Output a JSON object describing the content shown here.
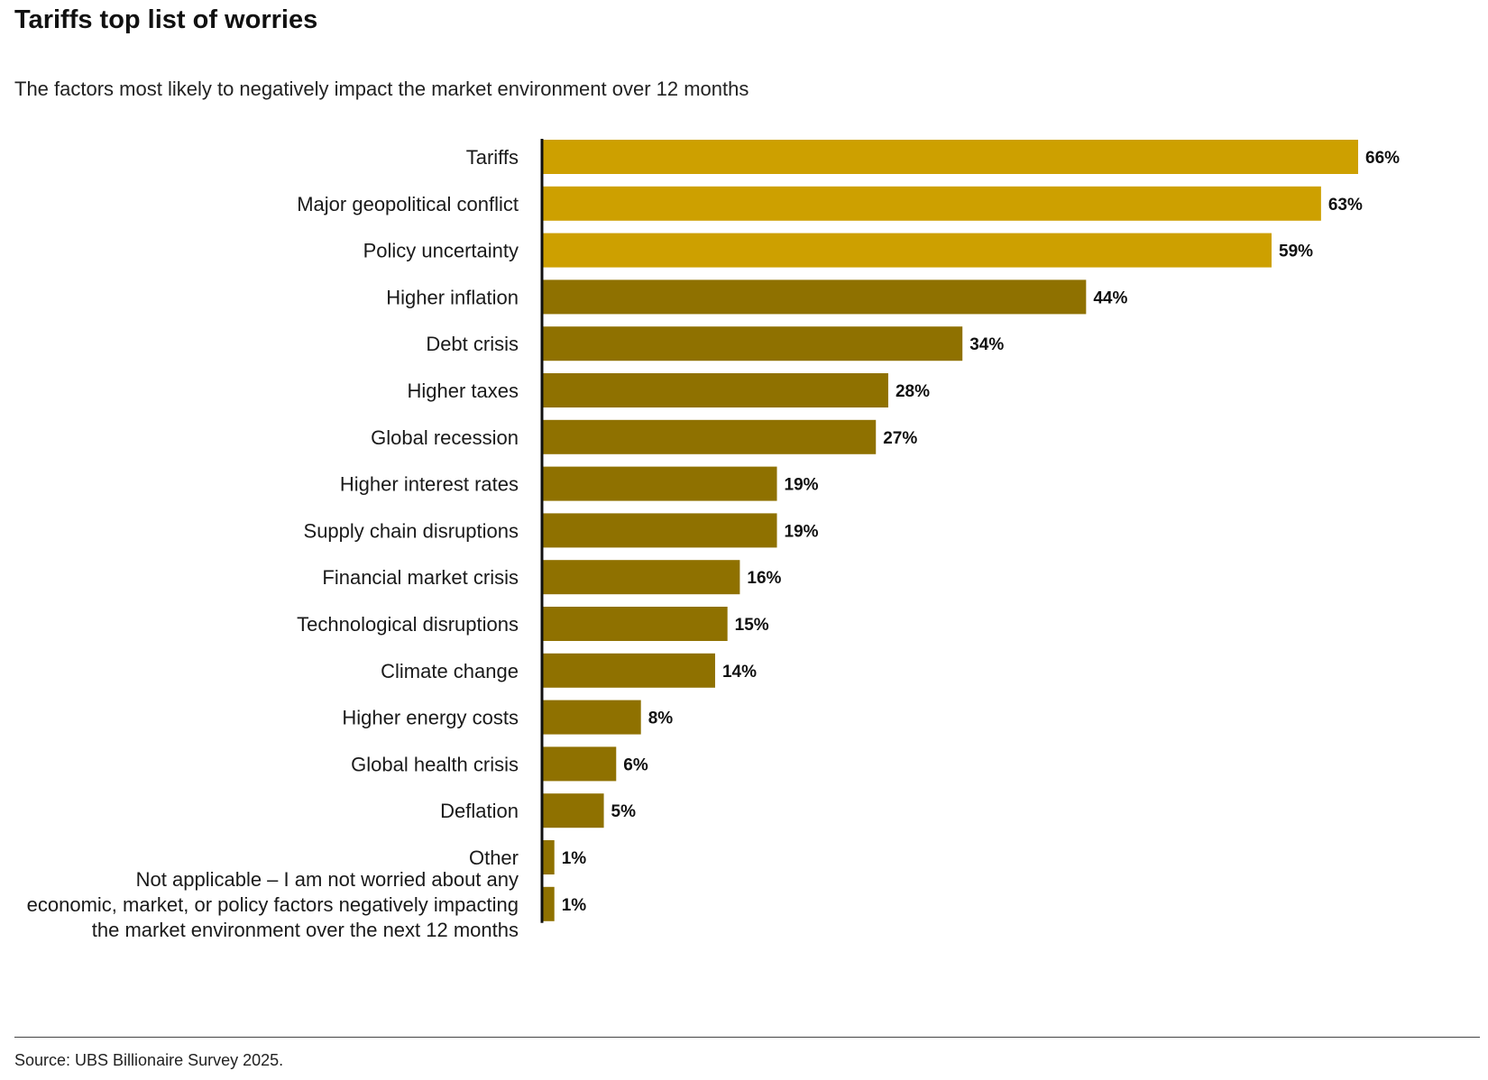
{
  "title": "Tariffs top list of worries",
  "subtitle": "The factors most likely to negatively impact the market environment over 12 months",
  "source": "Source: UBS Billionaire Survey 2025.",
  "colors": {
    "highlight": "#CDA000",
    "standard": "#8F7100",
    "axis": "#111111"
  },
  "chart_data": {
    "type": "bar",
    "orientation": "horizontal",
    "categories": [
      "Tariffs",
      "Major geopolitical conflict",
      "Policy uncertainty",
      "Higher inflation",
      "Debt crisis",
      "Higher taxes",
      "Global recession",
      "Higher interest rates",
      "Supply chain disruptions",
      "Financial market crisis",
      "Technological disruptions",
      "Climate change",
      "Higher energy costs",
      "Global health crisis",
      "Deflation",
      "Other",
      "Not applicable – I am not worried about any economic, market, or policy factors negatively impacting the market environment over the next 12 months"
    ],
    "category_lines": [
      [
        "Tariffs"
      ],
      [
        "Major geopolitical conflict"
      ],
      [
        "Policy uncertainty"
      ],
      [
        "Higher inflation"
      ],
      [
        "Debt crisis"
      ],
      [
        "Higher taxes"
      ],
      [
        "Global recession"
      ],
      [
        "Higher interest rates"
      ],
      [
        "Supply chain disruptions"
      ],
      [
        "Financial market crisis"
      ],
      [
        "Technological disruptions"
      ],
      [
        "Climate change"
      ],
      [
        "Higher energy costs"
      ],
      [
        "Global health crisis"
      ],
      [
        "Deflation"
      ],
      [
        "Other"
      ],
      [
        "Not applicable – I am not worried about any",
        "economic, market, or policy factors negatively impacting",
        "the market environment over the next 12 months"
      ]
    ],
    "values": [
      66,
      63,
      59,
      44,
      34,
      28,
      27,
      19,
      19,
      16,
      15,
      14,
      8,
      6,
      5,
      1,
      1
    ],
    "value_labels": [
      "66%",
      "63%",
      "59%",
      "44%",
      "34%",
      "28%",
      "27%",
      "19%",
      "19%",
      "16%",
      "15%",
      "14%",
      "8%",
      "6%",
      "5%",
      "1%",
      "1%"
    ],
    "highlighted": [
      true,
      true,
      true,
      false,
      false,
      false,
      false,
      false,
      false,
      false,
      false,
      false,
      false,
      false,
      false,
      false,
      false
    ],
    "xlim": [
      0,
      66
    ],
    "grid": false,
    "legend": "none"
  }
}
